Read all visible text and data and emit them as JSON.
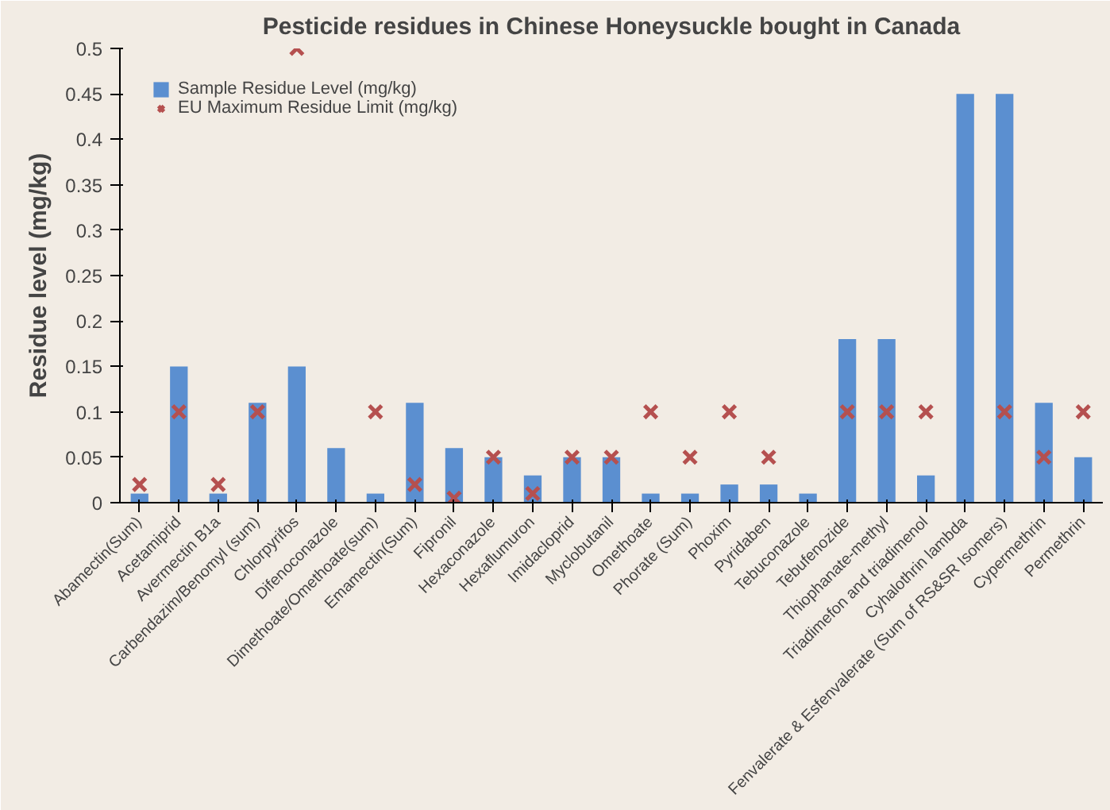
{
  "chart_data": {
    "type": "bar",
    "title": "Pesticide residues in Chinese Honeysuckle bought in Canada",
    "ylabel": "Residue level (mg/kg)",
    "categories": [
      "Abamectin(Sum)",
      "Acetamiprid",
      "Avermectin B1a",
      "Carbendazim/Benomyl (sum)",
      "Chlorpyrifos",
      "Difenoconazole",
      "Dimethoate/Omethoate(sum)",
      "Emamectin(Sum)",
      "Fipronil",
      "Hexaconazole",
      "Hexaflumuron",
      "Imidacloprid",
      "Myclobutanil",
      "Omethoate",
      "Phorate (Sum)",
      "Phoxim",
      "Pyridaben",
      "Tebuconazole",
      "Tebufenozide",
      "Thiophanate-methyl",
      "Triadimefon and triadimenol",
      "Cyhalothrin lambda",
      "Fenvalerate & Esfenvalerate (Sum of RS&SR Isomers)",
      "Cypermethrin",
      "Permethrin"
    ],
    "series": [
      {
        "name": "Sample Residue Level (mg/kg)",
        "color": "#5b8fd0",
        "values": [
          0.01,
          0.15,
          0.01,
          0.11,
          0.15,
          0.06,
          0.01,
          0.11,
          0.06,
          0.05,
          0.03,
          0.05,
          0.05,
          0.01,
          0.01,
          0.02,
          0.02,
          0.01,
          0.18,
          0.18,
          0.03,
          0.45,
          0.45,
          0.11,
          0.05
        ]
      },
      {
        "name": "EU Maximum Residue Limit (mg/kg)",
        "type": "scatter",
        "marker": "cross",
        "color": "#b5504f",
        "values": [
          0.02,
          0.1,
          0.02,
          0.1,
          0.5,
          null,
          0.1,
          0.02,
          0.005,
          0.05,
          0.01,
          0.05,
          0.05,
          0.1,
          0.05,
          0.1,
          0.05,
          null,
          0.1,
          0.1,
          0.1,
          null,
          0.1,
          0.05,
          0.1
        ]
      }
    ],
    "ylim": [
      0,
      0.5
    ],
    "yticks": [
      0,
      0.05,
      0.1,
      0.15,
      0.2,
      0.25,
      0.3,
      0.35,
      0.4,
      0.45,
      0.5
    ],
    "grid": false,
    "legend": "top left"
  }
}
